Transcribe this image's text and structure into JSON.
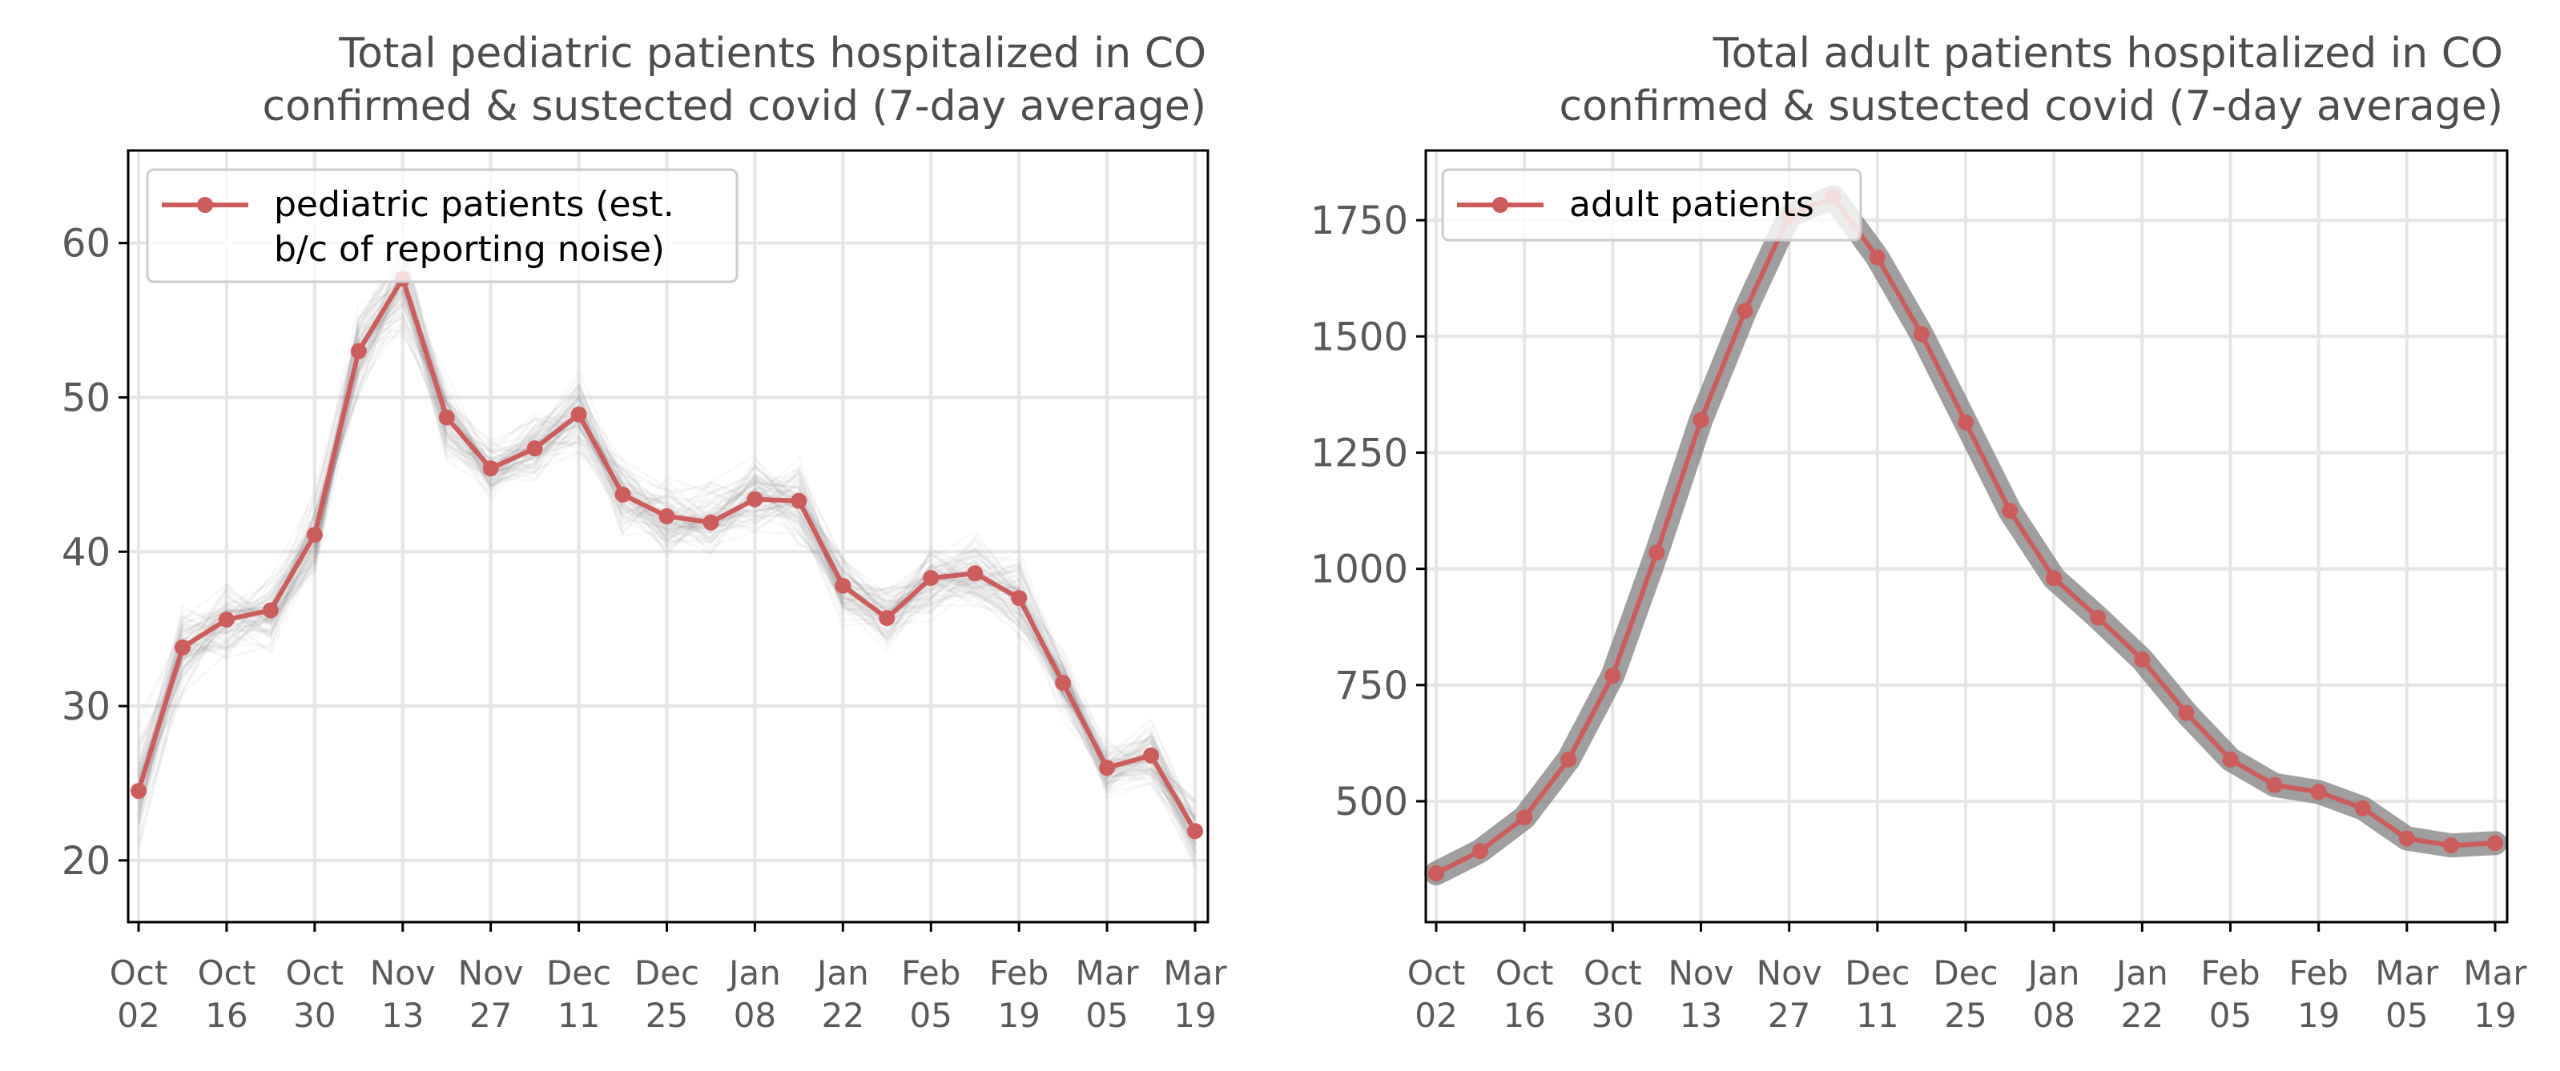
{
  "colors": {
    "series": "#cd5c5c",
    "band": "#7f7f7f",
    "grid": "#e6e6e6",
    "axis": "#000000",
    "tick_text": "#595959",
    "title_text": "#4d4d4d"
  },
  "chart_data": [
    {
      "type": "line",
      "title_lines": [
        "Total pediatric patients hospitalized in CO",
        "confirmed & sustected covid (7-day average)"
      ],
      "xlabel": "",
      "ylabel": "",
      "x_tick_labels": [
        [
          "Oct",
          "02"
        ],
        [
          "Oct",
          "16"
        ],
        [
          "Oct",
          "30"
        ],
        [
          "Nov",
          "13"
        ],
        [
          "Nov",
          "27"
        ],
        [
          "Dec",
          "11"
        ],
        [
          "Dec",
          "25"
        ],
        [
          "Jan",
          "08"
        ],
        [
          "Jan",
          "22"
        ],
        [
          "Feb",
          "05"
        ],
        [
          "Feb",
          "19"
        ],
        [
          "Mar",
          "05"
        ],
        [
          "Mar",
          "19"
        ]
      ],
      "yticks": [
        20,
        30,
        40,
        50,
        60
      ],
      "ylim": [
        16,
        66
      ],
      "grid": true,
      "legend": {
        "placement": "top-left",
        "lines": [
          "pediatric patients (est.",
          "b/c of reporting noise)"
        ]
      },
      "series": [
        {
          "x": [
            "Oct 02",
            "Oct 09",
            "Oct 16",
            "Oct 23",
            "Oct 30",
            "Nov 06",
            "Nov 13",
            "Nov 20",
            "Nov 27",
            "Dec 04",
            "Dec 11",
            "Dec 18",
            "Dec 25",
            "Jan 01",
            "Jan 08",
            "Jan 15",
            "Jan 22",
            "Jan 29",
            "Feb 05",
            "Feb 12",
            "Feb 19",
            "Feb 26",
            "Mar 05",
            "Mar 12",
            "Mar 19"
          ],
          "values": [
            24.5,
            33.8,
            35.6,
            36.2,
            41.1,
            53.0,
            57.7,
            48.7,
            45.4,
            46.7,
            48.9,
            43.7,
            42.3,
            41.9,
            43.4,
            43.3,
            37.8,
            35.7,
            38.3,
            38.6,
            37.0,
            31.5,
            26.0,
            26.8,
            21.9
          ]
        }
      ],
      "uncertainty": "many faint gray sample trajectories around the estimate"
    },
    {
      "type": "line",
      "title_lines": [
        "Total adult patients hospitalized in CO",
        "confirmed & sustected covid (7-day average)"
      ],
      "xlabel": "",
      "ylabel": "",
      "x_tick_labels": [
        [
          "Oct",
          "02"
        ],
        [
          "Oct",
          "16"
        ],
        [
          "Oct",
          "30"
        ],
        [
          "Nov",
          "13"
        ],
        [
          "Nov",
          "27"
        ],
        [
          "Dec",
          "11"
        ],
        [
          "Dec",
          "25"
        ],
        [
          "Jan",
          "08"
        ],
        [
          "Jan",
          "22"
        ],
        [
          "Feb",
          "05"
        ],
        [
          "Feb",
          "19"
        ],
        [
          "Mar",
          "05"
        ],
        [
          "Mar",
          "19"
        ]
      ],
      "yticks": [
        500,
        750,
        1000,
        1250,
        1500,
        1750
      ],
      "ylim": [
        240,
        1900
      ],
      "grid": true,
      "legend": {
        "placement": "top-left",
        "lines": [
          "adult patients"
        ]
      },
      "series": [
        {
          "x": [
            "Oct 02",
            "Oct 09",
            "Oct 16",
            "Oct 23",
            "Oct 30",
            "Nov 06",
            "Nov 13",
            "Nov 20",
            "Nov 27",
            "Dec 04",
            "Dec 11",
            "Dec 18",
            "Dec 25",
            "Jan 01",
            "Jan 08",
            "Jan 15",
            "Jan 22",
            "Jan 29",
            "Feb 05",
            "Feb 12",
            "Feb 19",
            "Feb 26",
            "Mar 05",
            "Mar 12",
            "Mar 19"
          ],
          "values": [
            345,
            393,
            465,
            590,
            770,
            1035,
            1320,
            1555,
            1760,
            1800,
            1670,
            1505,
            1315,
            1125,
            980,
            895,
            805,
            690,
            590,
            535,
            520,
            485,
            420,
            405,
            410
          ]
        }
      ],
      "uncertainty": "narrow gray band around the estimate"
    }
  ]
}
